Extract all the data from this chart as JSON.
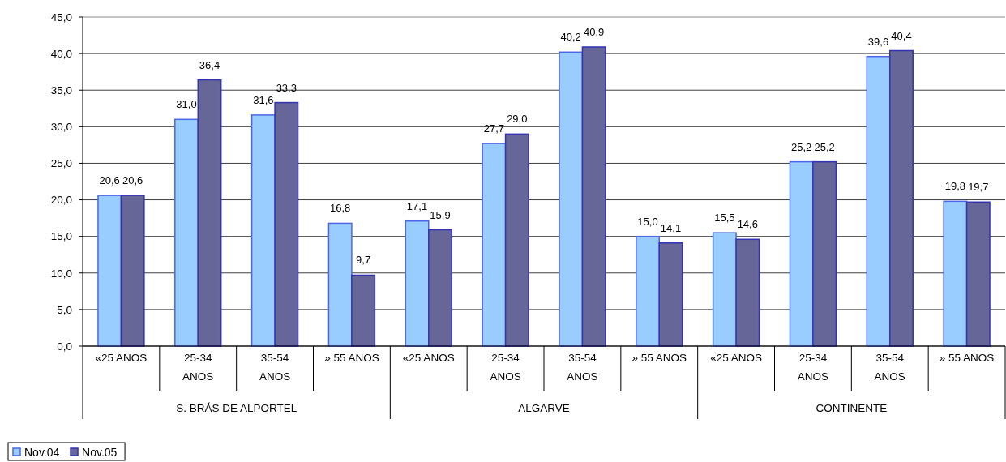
{
  "chart_data": {
    "type": "bar",
    "categories": [
      "«25 ANOS",
      "25-34 ANOS",
      "35-54 ANOS",
      "» 55 ANOS",
      "«25 ANOS",
      "25-34 ANOS",
      "35-54 ANOS",
      "» 55 ANOS",
      "«25 ANOS",
      "25-34 ANOS",
      "35-54 ANOS",
      "» 55 ANOS"
    ],
    "series": [
      {
        "name": "Nov.04",
        "color": "#99ccff",
        "values": [
          20.6,
          31.0,
          31.6,
          16.8,
          17.1,
          27.7,
          40.2,
          15.0,
          15.5,
          25.2,
          39.6,
          19.8
        ],
        "value_labels": [
          "20,6",
          "31,0",
          "31,6",
          "16,8",
          "17,1",
          "27,7",
          "40,2",
          "15,0",
          "15,5",
          "25,2",
          "39,6",
          "19,8"
        ]
      },
      {
        "name": "Nov.05",
        "color": "#666699",
        "values": [
          20.6,
          36.4,
          33.3,
          9.7,
          15.9,
          29.0,
          40.9,
          14.1,
          14.6,
          25.2,
          40.4,
          19.7
        ],
        "value_labels": [
          "20,6",
          "36,4",
          "33,3",
          "9,7",
          "15,9",
          "29,0",
          "40,9",
          "14,1",
          "14,6",
          "25,2",
          "40,4",
          "19,7"
        ]
      }
    ],
    "ylim": [
      0,
      45
    ],
    "yticks": [
      {
        "value": 0,
        "label": "0,0"
      },
      {
        "value": 5,
        "label": "5,0"
      },
      {
        "value": 10,
        "label": "10,0"
      },
      {
        "value": 15,
        "label": "15,0"
      },
      {
        "value": 20,
        "label": "20,0"
      },
      {
        "value": 25,
        "label": "25,0"
      },
      {
        "value": 30,
        "label": "30,0"
      },
      {
        "value": 35,
        "label": "35,0"
      },
      {
        "value": 40,
        "label": "40,0"
      },
      {
        "value": 45,
        "label": "45,0"
      }
    ],
    "grid": "y",
    "legend": "bottom left",
    "annotations": [
      "S. BRÁS DE ALPORTEL",
      "ALGARVE",
      "CONTINENTE"
    ]
  }
}
